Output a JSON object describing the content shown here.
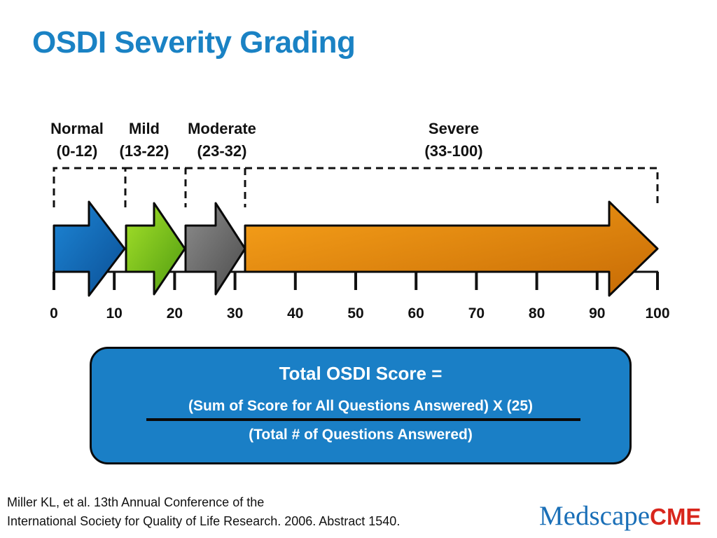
{
  "title": "OSDI Severity Grading",
  "categories": [
    {
      "name": "Normal",
      "range": "(0-12)",
      "start": 0,
      "end": 12,
      "color": "#1066b4"
    },
    {
      "name": "Mild",
      "range": "(13-22)",
      "start": 13,
      "end": 22,
      "color": "#7cc21b"
    },
    {
      "name": "Moderate",
      "range": "(23-32)",
      "start": 23,
      "end": 32,
      "color": "#6e6e6e"
    },
    {
      "name": "Severe",
      "range": "(33-100)",
      "start": 33,
      "end": 100,
      "color": "#ea8a0a"
    }
  ],
  "scale": {
    "ticks": [
      "0",
      "10",
      "20",
      "30",
      "40",
      "50",
      "60",
      "70",
      "80",
      "90",
      "100"
    ],
    "min": 0,
    "max": 100
  },
  "formula": {
    "heading": "Total OSDI Score =",
    "numerator": "(Sum of Score for All Questions Answered) X (25)",
    "denominator": "(Total # of Questions Answered)"
  },
  "citation": {
    "line1": "Miller KL, et al. 13th Annual Conference of the",
    "line2": "International Society for Quality of Life Research. 2006. Abstract 1540."
  },
  "logo": {
    "part1": "Med",
    "part2": "scape",
    "part3": "CME"
  }
}
